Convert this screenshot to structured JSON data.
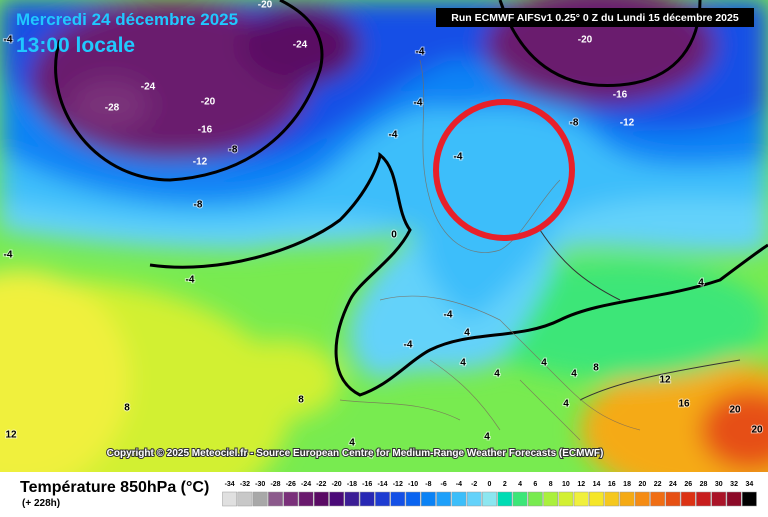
{
  "header": {
    "date": "Mercredi 24 décembre 2025",
    "time": "13:00 locale",
    "run": "Run ECMWF AIFSv1 0.25° 0 Z du Lundi 15 décembre 2025"
  },
  "copyright": "Copyright © 2025 Meteociel.fr - Source European Centre for Medium-Range Weather Forecasts (ECMWF)",
  "legend": {
    "title": "Température 850hPa (°C)",
    "lead_time": "(+ 228h)",
    "ticks": [
      -34,
      -32,
      -30,
      -28,
      -26,
      -24,
      -22,
      -20,
      -18,
      -16,
      -14,
      -12,
      -10,
      -8,
      -6,
      -4,
      -2,
      0,
      2,
      4,
      6,
      8,
      10,
      12,
      14,
      16,
      18,
      20,
      22,
      24,
      26,
      28,
      30,
      32,
      34
    ],
    "colors": [
      "#e0e0e0",
      "#c8c8c8",
      "#a8a8a8",
      "#8c5a8c",
      "#7a307a",
      "#6a1a6e",
      "#5a0a64",
      "#4b0a78",
      "#3c1e96",
      "#2828b4",
      "#1e3cd2",
      "#1450e6",
      "#0a64f0",
      "#0a82f5",
      "#1ea0fa",
      "#3cbefa",
      "#64d2fa",
      "#8ce6f0",
      "#00dcb4",
      "#3ce678",
      "#78eb50",
      "#aaf03c",
      "#d2f032",
      "#f0f03c",
      "#f5e628",
      "#f5c81e",
      "#f5aa14",
      "#f58c14",
      "#f06e14",
      "#e65014",
      "#dc3214",
      "#c81e1e",
      "#aa1428",
      "#8c0a28",
      "#000000"
    ]
  },
  "contour_labels": [
    -20,
    -24,
    -28,
    -24,
    -20,
    -16,
    -12,
    -8,
    -8,
    -4,
    -4,
    -4,
    -4,
    -4,
    -20,
    -16,
    -12,
    -8,
    0,
    -4,
    -4,
    -4,
    -4,
    4,
    4,
    4,
    4,
    4,
    8,
    4,
    8,
    8,
    12,
    4,
    12,
    16,
    20,
    20,
    4,
    4,
    4,
    8
  ]
}
